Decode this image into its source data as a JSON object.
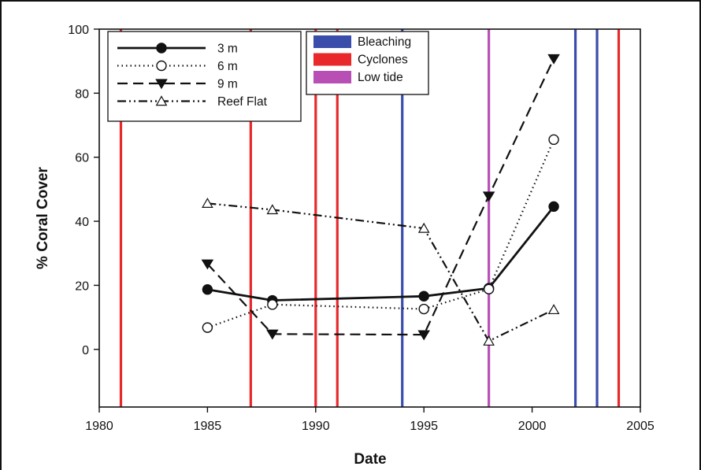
{
  "chart_data": {
    "type": "line",
    "xlabel": "Date",
    "ylabel": "% Coral Cover",
    "xlim": [
      1980,
      2005
    ],
    "ylim": [
      -18,
      100
    ],
    "xticks": [
      1980,
      1985,
      1990,
      1995,
      2000,
      2005
    ],
    "yticks": [
      0,
      20,
      40,
      60,
      80,
      100
    ],
    "grid": false,
    "series": [
      {
        "name": "3 m",
        "style": "solid",
        "marker": "filled-circle",
        "x": [
          1985,
          1988,
          1995,
          1998,
          2001
        ],
        "y": [
          18.7,
          15.3,
          16.6,
          19.1,
          44.6
        ]
      },
      {
        "name": "6 m",
        "style": "dotted",
        "marker": "open-circle",
        "x": [
          1985,
          1988,
          1995,
          1998,
          2001
        ],
        "y": [
          6.8,
          14.0,
          12.6,
          18.8,
          65.5
        ]
      },
      {
        "name": "9 m",
        "style": "dashed",
        "marker": "filled-triangle-down",
        "x": [
          1985,
          1988,
          1995,
          1998,
          2001
        ],
        "y": [
          26.7,
          4.8,
          4.6,
          47.9,
          90.8
        ]
      },
      {
        "name": "Reef Flat",
        "style": "dash-dot-dot",
        "marker": "open-triangle-up",
        "x": [
          1985,
          1988,
          1995,
          1998,
          2001
        ],
        "y": [
          45.6,
          43.6,
          37.8,
          2.6,
          12.4
        ]
      }
    ],
    "events": [
      {
        "name": "Bleaching",
        "color": "#3b4dab",
        "years": [
          1994,
          2002,
          2003
        ]
      },
      {
        "name": "Cyclones",
        "color": "#e8282b",
        "years": [
          1981,
          1987,
          1990,
          1991,
          2004
        ]
      },
      {
        "name": "Low tide",
        "color": "#b84fb5",
        "years": [
          1998
        ]
      }
    ],
    "legend_placement": "top-left (series), top-center (events)"
  }
}
